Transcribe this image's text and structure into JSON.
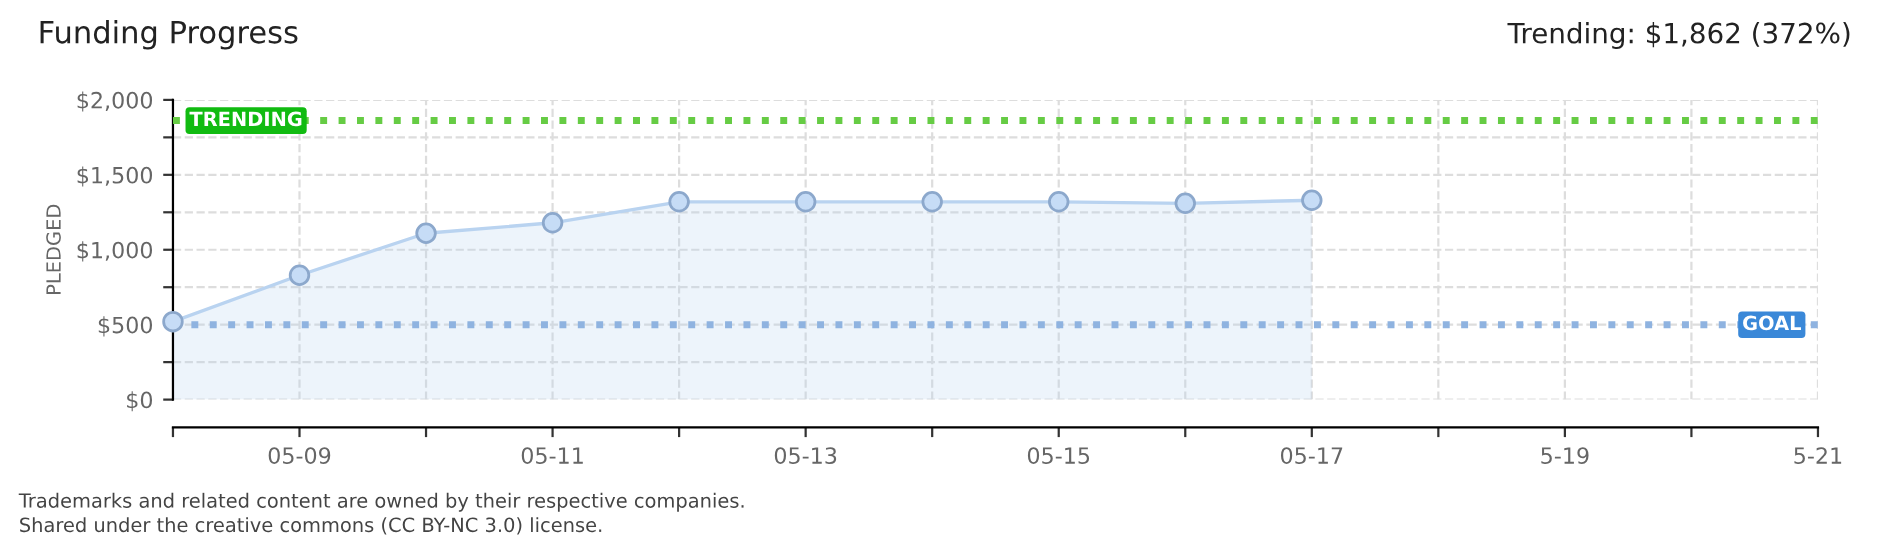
{
  "chart_data": {
    "type": "area",
    "title": "Funding Progress",
    "ylabel": "PLEDGED",
    "categories": [
      null,
      "05-09",
      null,
      "05-11",
      null,
      "05-13",
      null,
      "05-15",
      null,
      "05-17",
      null,
      "5-19",
      null,
      "5-21"
    ],
    "series": [
      {
        "color": "#b9d3f0",
        "values": [
          520,
          830,
          1110,
          1180,
          1320,
          1320,
          1320,
          1320,
          1310,
          1330,
          null,
          null,
          null,
          null
        ]
      },
      {
        "type": "scatter",
        "marker": "circle",
        "color": "#c6dcf6",
        "values": [
          520,
          830,
          1110,
          1180,
          1320,
          1320,
          1320,
          1320,
          1310,
          1330,
          null,
          null,
          null,
          null
        ]
      }
    ],
    "ylim": [
      0,
      2000
    ],
    "yticks": [
      {
        "value": 0,
        "label": "$0"
      },
      {
        "value": 250,
        "label": null
      },
      {
        "value": 500,
        "label": "$500"
      },
      {
        "value": 750,
        "label": null
      },
      {
        "value": 1000,
        "label": "$1,000"
      },
      {
        "value": 1250,
        "label": null
      },
      {
        "value": 1500,
        "label": "$1,500"
      },
      {
        "value": 1750,
        "label": null
      },
      {
        "value": 2000,
        "label": "$2,000"
      }
    ],
    "ref_lines": [
      {
        "axis": "y",
        "value": 1862,
        "label": "TRENDING",
        "color": "#66cc44",
        "line_style": "dotted"
      },
      {
        "axis": "y",
        "value": 500,
        "label": "GOAL",
        "color": "#8fb3e0",
        "line_style": "dotted"
      }
    ],
    "annotations": [
      "Trending: $1,862 (372%)",
      "Trademarks and related content are owned by their respective companies.",
      "Shared under the creative commons (CC BY-NC 3.0) license."
    ],
    "grid": true
  }
}
